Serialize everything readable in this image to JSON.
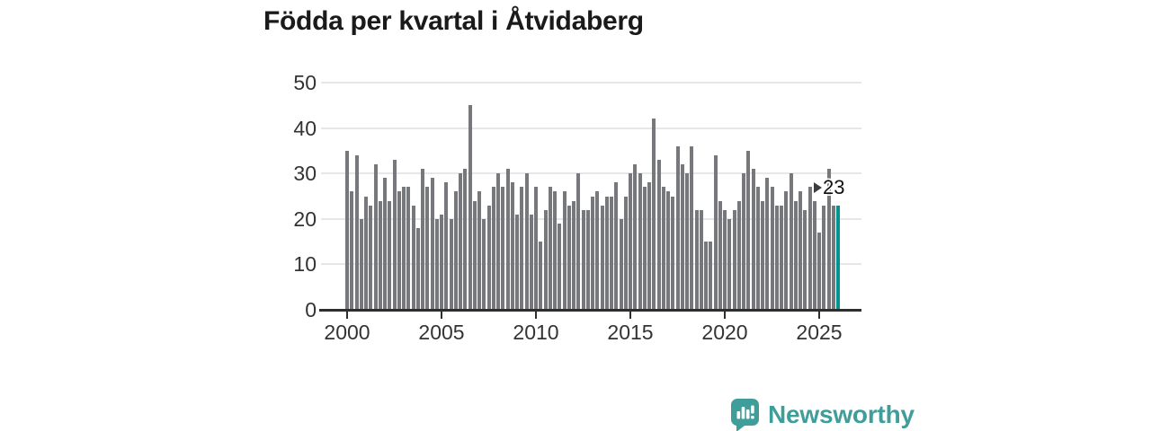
{
  "title": "Födda per kvartal i Åtvidaberg",
  "annotation": {
    "label": "23"
  },
  "logo": {
    "text": "Newsworthy",
    "icon": "speech-bubble-bar-chart"
  },
  "colors": {
    "bar": "#77787b",
    "highlight": "#00948e",
    "grid": "#e7e7e8",
    "axis": "#2e2e2e",
    "text": "#333333",
    "title": "#1a1a1a",
    "logo": "#3f9e99"
  },
  "chart_data": {
    "type": "bar",
    "title": "Födda per kvartal i Åtvidaberg",
    "xlabel": "",
    "ylabel": "",
    "x_start": "2000-Q1",
    "x_end": "2026-Q1",
    "x_frequency": "quarterly",
    "x_tick_labels": [
      "2000",
      "2005",
      "2010",
      "2015",
      "2020",
      "2025"
    ],
    "y_ticks": [
      0,
      10,
      20,
      30,
      40,
      50
    ],
    "ylim": [
      0,
      50
    ],
    "grid": "horizontal-only",
    "legend": "none",
    "highlight_last_bar": true,
    "last_bar_label": "23",
    "values": [
      35,
      26,
      34,
      20,
      25,
      23,
      32,
      24,
      29,
      24,
      33,
      26,
      27,
      27,
      23,
      18,
      31,
      27,
      29,
      20,
      21,
      28,
      20,
      26,
      30,
      31,
      45,
      24,
      26,
      20,
      23,
      27,
      30,
      27,
      31,
      28,
      21,
      27,
      30,
      21,
      27,
      15,
      22,
      27,
      26,
      19,
      26,
      23,
      24,
      30,
      22,
      22,
      25,
      26,
      23,
      25,
      25,
      28,
      20,
      25,
      30,
      32,
      30,
      27,
      28,
      42,
      33,
      27,
      26,
      25,
      36,
      32,
      30,
      36,
      22,
      22,
      15,
      15,
      34,
      24,
      22,
      20,
      22,
      24,
      30,
      35,
      31,
      27,
      24,
      29,
      27,
      23,
      23,
      26,
      30,
      24,
      26,
      22,
      27,
      24,
      17,
      23,
      31,
      23,
      23
    ]
  }
}
